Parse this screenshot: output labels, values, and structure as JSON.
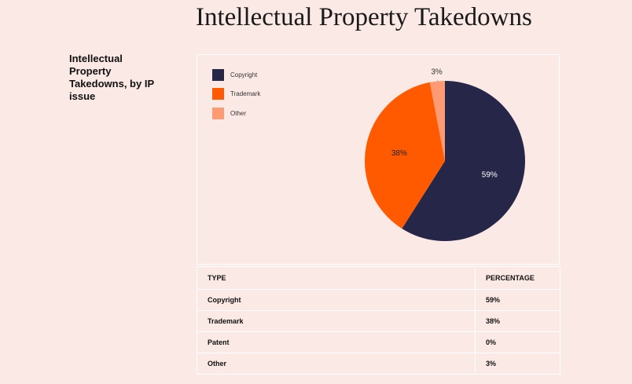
{
  "page_title": "Intellectual Property Takedowns",
  "caption": "Intellectual Property Takedowns, by IP issue",
  "colors": {
    "background": "#fbe9e5",
    "copyright": "#262649",
    "trademark": "#ff5a00",
    "other": "#ff9b74"
  },
  "chart_data": {
    "type": "pie",
    "title": "",
    "legend_position": "top-left",
    "slices": [
      {
        "label": "Copyright",
        "value": 59,
        "display": "59%",
        "color": "#262649"
      },
      {
        "label": "Trademark",
        "value": 38,
        "display": "38%",
        "color": "#ff5a00"
      },
      {
        "label": "Other",
        "value": 3,
        "display": "3%",
        "color": "#ff9b74"
      }
    ]
  },
  "table": {
    "headers": [
      "TYPE",
      "PERCENTAGE"
    ],
    "rows": [
      [
        "Copyright",
        "59%"
      ],
      [
        "Trademark",
        "38%"
      ],
      [
        "Patent",
        "0%"
      ],
      [
        "Other",
        "3%"
      ]
    ]
  }
}
